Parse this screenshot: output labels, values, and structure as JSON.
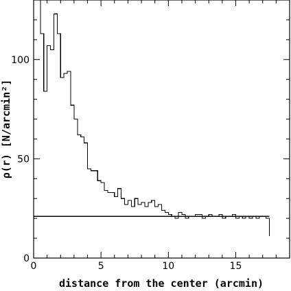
{
  "chart_data": {
    "type": "line",
    "title": "",
    "xlabel": "distance from the center (arcmin)",
    "ylabel": "ρ(r) [N/arcmin²]",
    "xlim": [
      0,
      19
    ],
    "ylim": [
      0,
      130
    ],
    "grid": false,
    "x_ticks": [
      0,
      5,
      10,
      15
    ],
    "x_tick_labels": [
      "0",
      "5",
      "10",
      "15"
    ],
    "y_ticks": [
      0,
      50,
      100
    ],
    "y_tick_labels": [
      "0",
      "50",
      "100"
    ],
    "series": [
      {
        "style": "step",
        "color": "#000000",
        "x": [
          0.25,
          0.5,
          0.75,
          1.0,
          1.25,
          1.5,
          1.75,
          2.0,
          2.25,
          2.5,
          2.75,
          3.0,
          3.25,
          3.5,
          3.75,
          4.0,
          4.25,
          4.5,
          4.75,
          5.0,
          5.25,
          5.5,
          5.75,
          6.0,
          6.25,
          6.5,
          6.75,
          7.0,
          7.25,
          7.5,
          7.75,
          8.0,
          8.25,
          8.5,
          8.75,
          9.0,
          9.25,
          9.5,
          9.75,
          10.0,
          10.25,
          10.5,
          10.75,
          11.0,
          11.25,
          11.5,
          11.75,
          12.0,
          12.25,
          12.5,
          12.75,
          13.0,
          13.25,
          13.5,
          13.75,
          14.0,
          14.25,
          14.5,
          14.75,
          15.0,
          15.25,
          15.5,
          15.75,
          16.0,
          16.25,
          16.5,
          16.75,
          17.0,
          17.25,
          17.5
        ],
        "y": [
          130,
          113,
          84,
          107,
          105,
          123,
          113,
          91,
          93,
          94,
          77,
          70,
          62,
          61,
          58,
          45,
          44,
          44,
          39,
          38,
          34,
          33,
          33,
          31,
          35,
          30,
          27,
          29,
          26,
          30,
          27,
          28,
          26,
          28,
          29,
          26,
          27,
          24,
          23,
          22,
          21,
          20,
          23,
          22,
          20,
          21,
          21,
          22,
          22,
          20,
          21,
          22,
          21,
          21,
          22,
          20,
          21,
          21,
          22,
          20,
          21,
          20,
          21,
          20,
          21,
          20,
          21,
          21,
          20,
          11
        ]
      },
      {
        "style": "line",
        "color": "#000000",
        "x": [
          0,
          17.5
        ],
        "y": [
          21,
          21
        ]
      }
    ]
  }
}
